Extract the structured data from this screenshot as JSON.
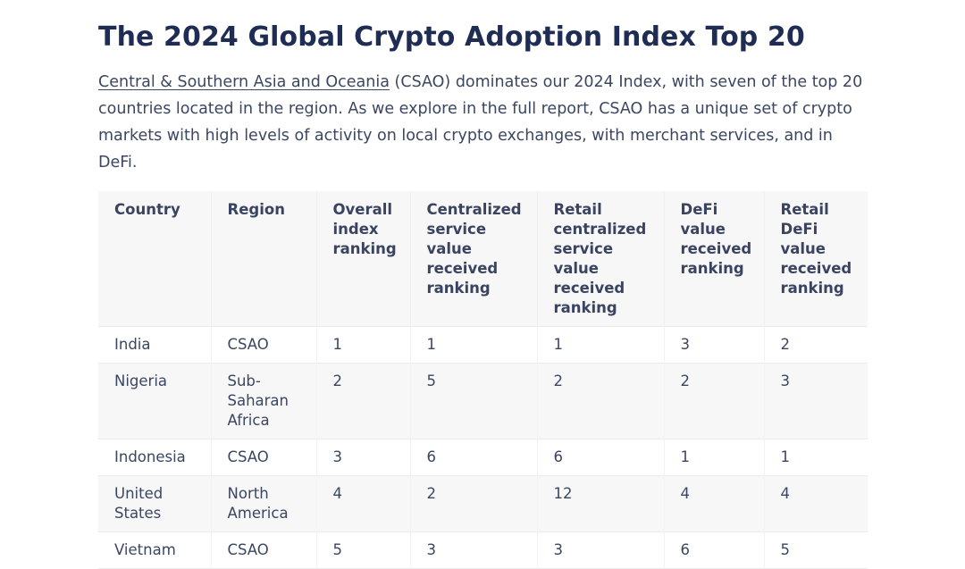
{
  "article": {
    "title": "The 2024 Global Crypto Adoption Index Top 20",
    "intro_link": "Central & Southern Asia and Oceania",
    "intro_rest": " (CSAO) dominates our 2024 Index, with seven of the top 20 countries located in the region. As we explore in the full report, CSAO has a unique set of crypto markets with high levels of activity on local crypto exchanges, with merchant services, and in DeFi."
  },
  "table": {
    "headers": [
      "Country",
      "Region",
      "Overall index ranking",
      "Centralized service value received ranking",
      "Retail centralized service value received ranking",
      "DeFi value received ranking",
      "Retail DeFi value received ranking"
    ],
    "rows": [
      [
        "India",
        "CSAO",
        "1",
        "1",
        "1",
        "3",
        "2"
      ],
      [
        "Nigeria",
        "Sub-Saharan Africa",
        "2",
        "5",
        "2",
        "2",
        "3"
      ],
      [
        "Indonesia",
        "CSAO",
        "3",
        "6",
        "6",
        "1",
        "1"
      ],
      [
        "United States",
        "North America",
        "4",
        "2",
        "12",
        "4",
        "4"
      ],
      [
        "Vietnam",
        "CSAO",
        "5",
        "3",
        "3",
        "6",
        "5"
      ]
    ]
  }
}
